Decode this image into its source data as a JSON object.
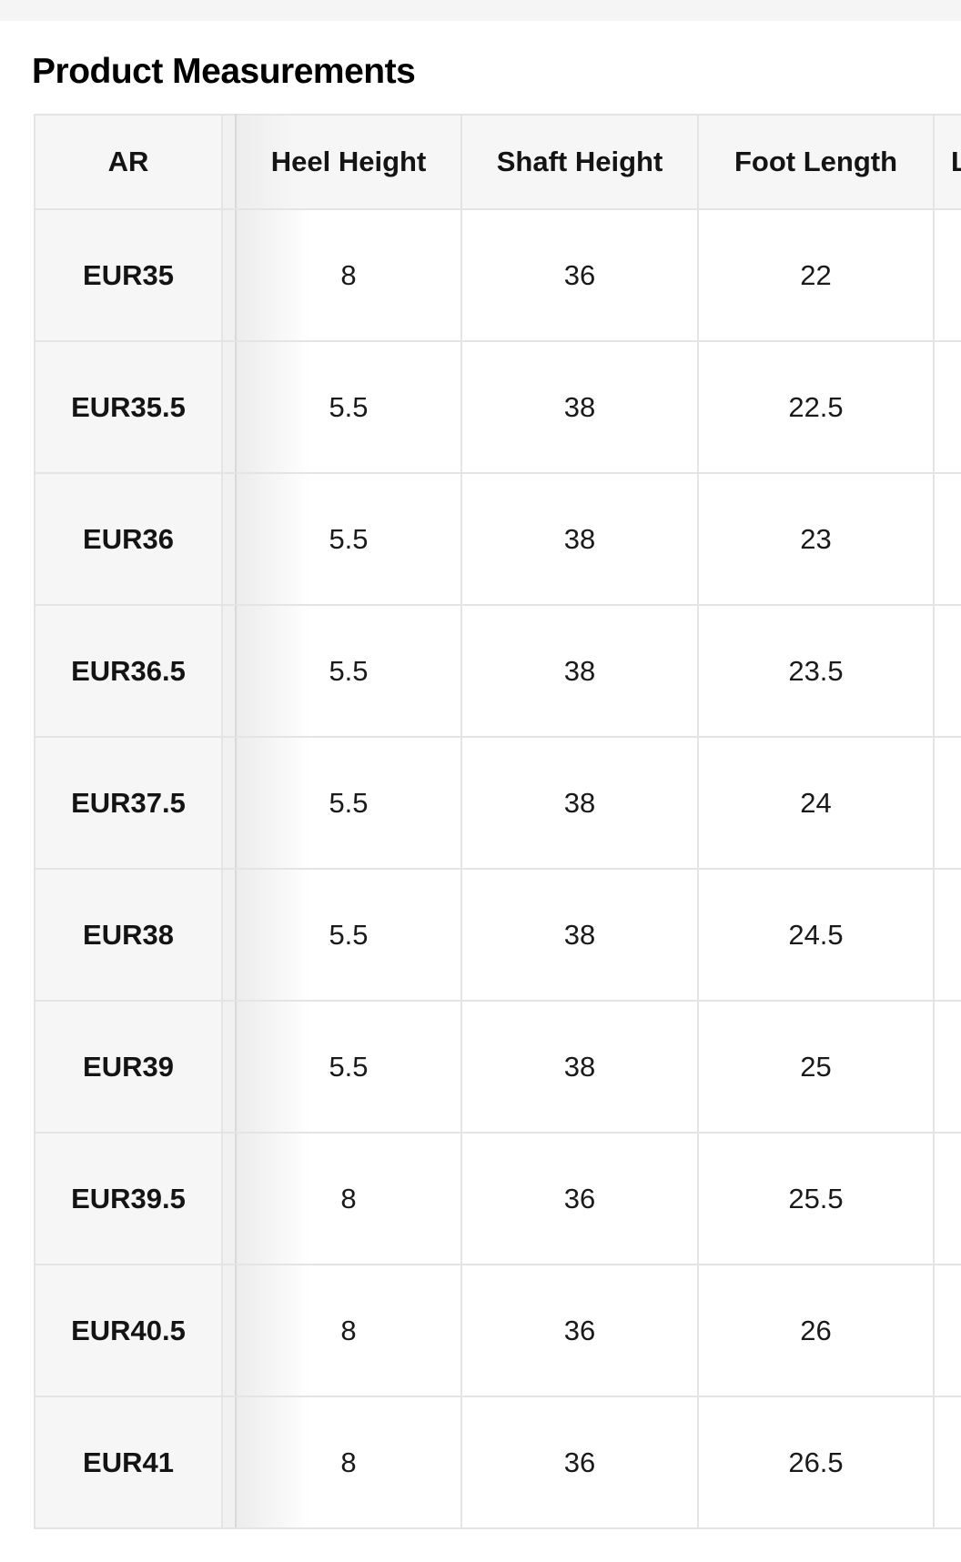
{
  "page": {
    "title": "Product Measurements"
  },
  "colors": {
    "topbar_bg": "#f5f5f5",
    "cell_gray_bg": "#f6f6f6",
    "grid_border": "#e4e4e4",
    "text": "#111111"
  },
  "table": {
    "columns": [
      "AR",
      "Heel Height",
      "Shaft Height",
      "Foot Length"
    ],
    "partial_column_visible": "L",
    "rows": [
      {
        "size": "EUR35",
        "values": [
          "8",
          "36",
          "22"
        ]
      },
      {
        "size": "EUR35.5",
        "values": [
          "5.5",
          "38",
          "22.5"
        ]
      },
      {
        "size": "EUR36",
        "values": [
          "5.5",
          "38",
          "23"
        ]
      },
      {
        "size": "EUR36.5",
        "values": [
          "5.5",
          "38",
          "23.5"
        ]
      },
      {
        "size": "EUR37.5",
        "values": [
          "5.5",
          "38",
          "24"
        ]
      },
      {
        "size": "EUR38",
        "values": [
          "5.5",
          "38",
          "24.5"
        ]
      },
      {
        "size": "EUR39",
        "values": [
          "5.5",
          "38",
          "25"
        ]
      },
      {
        "size": "EUR39.5",
        "values": [
          "8",
          "36",
          "25.5"
        ]
      },
      {
        "size": "EUR40.5",
        "values": [
          "8",
          "36",
          "26"
        ]
      },
      {
        "size": "EUR41",
        "values": [
          "8",
          "36",
          "26.5"
        ]
      }
    ]
  }
}
